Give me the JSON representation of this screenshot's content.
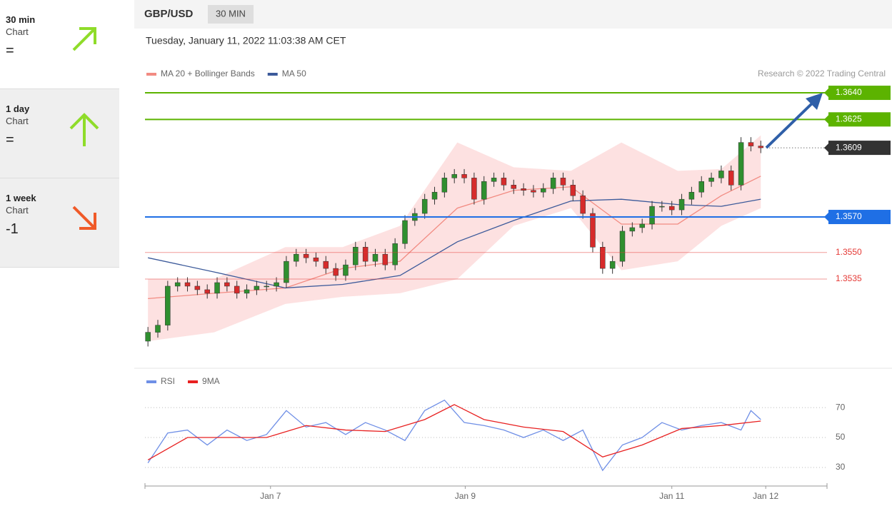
{
  "header": {
    "symbol": "GBP/USD",
    "timeframe": "30 MIN",
    "datetime": "Tuesday, January 11, 2022 11:03:38 AM CET"
  },
  "sidebar": [
    {
      "title": "30 min",
      "sub": "Chart",
      "value": "="
    },
    {
      "title": "1 day",
      "sub": "Chart",
      "value": "="
    },
    {
      "title": "1 week",
      "sub": "Chart",
      "value": "-1"
    }
  ],
  "chart_data": [
    {
      "type": "candlestick",
      "credit": "Research © 2022 Trading Central",
      "xlim": [
        -0.3,
        68.7
      ],
      "ylim": [
        1.3485,
        1.3645
      ],
      "up_color": "#2f8f2f",
      "down_color": "#d62b2b",
      "open": [
        1.35,
        1.3505,
        1.3509,
        1.3531,
        1.3533,
        1.3531,
        1.3529,
        1.3527,
        1.3533,
        1.3531,
        1.3527,
        1.3529,
        1.3531,
        1.3531,
        1.3533,
        1.3545,
        1.3549,
        1.3547,
        1.3545,
        1.3541,
        1.3537,
        1.3543,
        1.3553,
        1.3545,
        1.3549,
        1.3543,
        1.3555,
        1.3568,
        1.3572,
        1.358,
        1.3584,
        1.3592,
        1.3594,
        1.3592,
        1.358,
        1.359,
        1.3592,
        1.3588,
        1.3586,
        1.3585,
        1.3584,
        1.3586,
        1.3592,
        1.3588,
        1.3582,
        1.3572,
        1.3553,
        1.3541,
        1.3545,
        1.3562,
        1.3564,
        1.3566,
        1.3576,
        1.3576,
        1.3574,
        1.358,
        1.3584,
        1.359,
        1.3592,
        1.3596,
        1.3588,
        1.3612,
        1.361
      ],
      "high": [
        1.3508,
        1.3512,
        1.3534,
        1.3536,
        1.3536,
        1.3534,
        1.3532,
        1.3536,
        1.3536,
        1.3534,
        1.3532,
        1.3534,
        1.3534,
        1.3536,
        1.3548,
        1.3552,
        1.3552,
        1.355,
        1.3548,
        1.3544,
        1.3546,
        1.3556,
        1.3556,
        1.3552,
        1.3552,
        1.3558,
        1.3571,
        1.3575,
        1.3583,
        1.3587,
        1.3595,
        1.3597,
        1.3597,
        1.3595,
        1.3593,
        1.3595,
        1.3595,
        1.3591,
        1.3589,
        1.3588,
        1.3589,
        1.3595,
        1.3595,
        1.3591,
        1.3585,
        1.3575,
        1.3556,
        1.3548,
        1.3565,
        1.3567,
        1.3569,
        1.3579,
        1.3579,
        1.3579,
        1.3583,
        1.3587,
        1.3593,
        1.3595,
        1.3599,
        1.3599,
        1.3615,
        1.3615,
        1.3613
      ],
      "low": [
        1.3497,
        1.3502,
        1.3506,
        1.3528,
        1.3528,
        1.3526,
        1.3524,
        1.3524,
        1.3528,
        1.3524,
        1.3524,
        1.3526,
        1.3528,
        1.3528,
        1.353,
        1.3542,
        1.3544,
        1.3542,
        1.3538,
        1.3534,
        1.3534,
        1.354,
        1.3542,
        1.3542,
        1.354,
        1.354,
        1.3552,
        1.3565,
        1.3569,
        1.3577,
        1.3581,
        1.3589,
        1.3589,
        1.3577,
        1.3577,
        1.3587,
        1.3585,
        1.3583,
        1.3582,
        1.3581,
        1.3581,
        1.3583,
        1.3585,
        1.3579,
        1.3569,
        1.355,
        1.3538,
        1.3538,
        1.3542,
        1.3559,
        1.3561,
        1.3563,
        1.3573,
        1.3571,
        1.3571,
        1.3577,
        1.3581,
        1.3587,
        1.3589,
        1.3585,
        1.3585,
        1.3607,
        1.3606
      ],
      "close": [
        1.3505,
        1.3509,
        1.3531,
        1.3533,
        1.3531,
        1.3529,
        1.3527,
        1.3533,
        1.3531,
        1.3527,
        1.3529,
        1.3531,
        1.3531,
        1.3533,
        1.3545,
        1.3549,
        1.3547,
        1.3545,
        1.3541,
        1.3537,
        1.3543,
        1.3553,
        1.3545,
        1.3549,
        1.3543,
        1.3555,
        1.3568,
        1.3572,
        1.358,
        1.3584,
        1.3592,
        1.3594,
        1.3592,
        1.358,
        1.359,
        1.3592,
        1.3588,
        1.3586,
        1.3585,
        1.3584,
        1.3586,
        1.3592,
        1.3588,
        1.3582,
        1.3572,
        1.3553,
        1.3541,
        1.3545,
        1.3562,
        1.3564,
        1.3566,
        1.3576,
        1.3576,
        1.3574,
        1.358,
        1.3584,
        1.359,
        1.3592,
        1.3596,
        1.3588,
        1.3612,
        1.361,
        1.3609
      ],
      "series": [
        {
          "name": "MA 20 + Bollinger Bands",
          "color": "#f28b82",
          "band_color": "#fde1e1",
          "x": [
            0,
            6.7,
            13.9,
            19.7,
            25.5,
            31.3,
            37,
            42.8,
            47.9,
            53.6,
            58,
            62
          ],
          "values": [
            1.3524,
            1.3527,
            1.353,
            1.3541,
            1.3545,
            1.3575,
            1.3585,
            1.3587,
            1.3566,
            1.3566,
            1.3582,
            1.3593
          ],
          "upper": [
            1.3535,
            1.3535,
            1.3553,
            1.3553,
            1.3565,
            1.3612,
            1.3598,
            1.3596,
            1.3612,
            1.3596,
            1.3597,
            1.3616
          ],
          "lower": [
            1.35,
            1.3505,
            1.3521,
            1.3525,
            1.3527,
            1.3535,
            1.3565,
            1.3575,
            1.354,
            1.3545,
            1.3565,
            1.3575
          ]
        },
        {
          "name": "MA 50",
          "color": "#3c5a9a",
          "x": [
            0,
            6.7,
            13.9,
            19.7,
            25.5,
            31.3,
            37,
            42.8,
            47.9,
            53.6,
            58,
            62
          ],
          "values": [
            1.3547,
            1.3539,
            1.353,
            1.3532,
            1.3537,
            1.3556,
            1.3568,
            1.3579,
            1.358,
            1.3577,
            1.3576,
            1.358
          ]
        }
      ],
      "levels": [
        {
          "value": 1.364,
          "label": "1.3640",
          "color": "#5cb300",
          "style": "box",
          "line": "solid"
        },
        {
          "value": 1.3625,
          "label": "1.3625",
          "color": "#5cb300",
          "style": "box",
          "line": "solid"
        },
        {
          "value": 1.3609,
          "label": "1.3609",
          "color": "#333333",
          "style": "box",
          "line": "dotted"
        },
        {
          "value": 1.357,
          "label": "1.3570",
          "color": "#1f6fe5",
          "style": "box",
          "line": "solid"
        },
        {
          "value": 1.355,
          "label": "1.3550",
          "color": "#e53935",
          "style": "text",
          "line": "solid"
        },
        {
          "value": 1.3535,
          "label": "1.3535",
          "color": "#e53935",
          "style": "text",
          "line": "solid"
        }
      ]
    },
    {
      "type": "line",
      "xlim": [
        -0.3,
        68.7
      ],
      "ylim": [
        19,
        92
      ],
      "yticks": [
        30,
        50,
        70
      ],
      "grid": "dotted",
      "xticks": [
        {
          "value": 12.4,
          "label": "Jan 7"
        },
        {
          "value": 32.1,
          "label": "Jan 9"
        },
        {
          "value": 53,
          "label": "Jan 11"
        },
        {
          "value": 62.5,
          "label": "Jan 12"
        }
      ],
      "series": [
        {
          "name": "RSI",
          "color": "#6f8fe6",
          "x": [
            0,
            2,
            4,
            6,
            8,
            10,
            12,
            14,
            16,
            18,
            20,
            22,
            24,
            26,
            28,
            30,
            32,
            34,
            36,
            38,
            40,
            42,
            44,
            46,
            48,
            50,
            52,
            54,
            56,
            58,
            60,
            61,
            62
          ],
          "values": [
            33,
            53,
            55,
            45,
            55,
            48,
            52,
            68,
            57,
            60,
            52,
            60,
            55,
            48,
            68,
            75,
            60,
            58,
            55,
            50,
            55,
            48,
            55,
            28,
            45,
            50,
            60,
            55,
            58,
            60,
            55,
            68,
            62
          ]
        },
        {
          "name": "9MA",
          "color": "#e82020",
          "x": [
            0,
            4,
            8,
            12,
            16,
            20,
            24,
            28,
            31,
            34,
            38,
            42,
            46,
            50,
            54,
            58,
            62
          ],
          "values": [
            35,
            50,
            50,
            50,
            58,
            55,
            54,
            62,
            72,
            62,
            57,
            54,
            37,
            45,
            56,
            58,
            61
          ]
        }
      ]
    }
  ]
}
